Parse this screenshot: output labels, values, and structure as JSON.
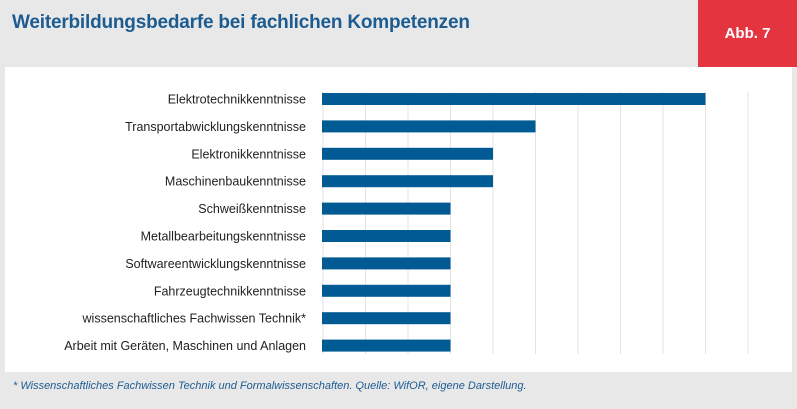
{
  "header": {
    "title": "Weiterbildungsbedarfe bei fachlichen Kompetenzen",
    "badge": "Abb. 7"
  },
  "footnote": "* Wissenschaftliches Fachwissen Technik und Formalwissenschaften. Quelle: WifOR, eigene Darstellung.",
  "colors": {
    "bar": "#005a93",
    "title": "#1d5c91",
    "badge": "#e4343f",
    "grid": "#e3e3e3"
  },
  "chart_data": {
    "type": "bar",
    "orientation": "horizontal",
    "categories": [
      "Elektrotechnikkenntnisse",
      "Transportabwicklungskenntnisse",
      "Elektronikkenntnisse",
      "Maschinenbaukenntnisse",
      "Schweißkenntnisse",
      "Metallbearbeitungskenntnisse",
      "Softwareentwicklungskenntnisse",
      "Fahrzeugtechnikkenntnisse",
      "wissenschaftliches Fachwissen Technik*",
      "Arbeit mit Geräten, Maschinen und Anlagen"
    ],
    "values": [
      9,
      5,
      4,
      4,
      3,
      3,
      3,
      3,
      3,
      3
    ],
    "xlim": [
      0,
      10
    ],
    "grid": true,
    "legend": "none"
  }
}
